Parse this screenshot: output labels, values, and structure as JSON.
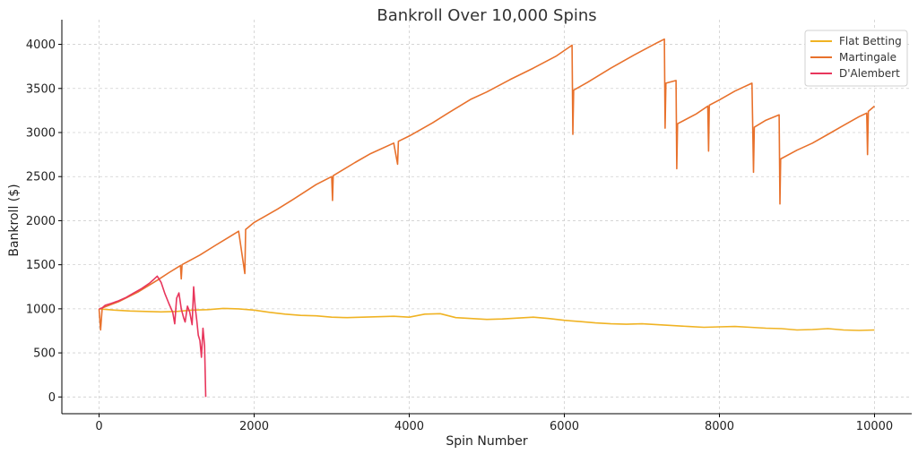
{
  "chart_data": {
    "type": "line",
    "title": "Bankroll Over 10,000 Spins",
    "xlabel": "Spin Number",
    "ylabel": "Bankroll ($)",
    "xlim": [
      -480,
      10480
    ],
    "ylim": [
      -190,
      4280
    ],
    "xticks": [
      0,
      2000,
      4000,
      6000,
      8000,
      10000
    ],
    "yticks": [
      0,
      500,
      1000,
      1500,
      2000,
      2500,
      3000,
      3500,
      4000
    ],
    "grid": true,
    "legend_position": "top-right",
    "series": [
      {
        "name": "Flat Betting",
        "color": "#f0b323",
        "points": [
          [
            0,
            1000
          ],
          [
            200,
            985
          ],
          [
            400,
            975
          ],
          [
            600,
            970
          ],
          [
            800,
            965
          ],
          [
            1000,
            970
          ],
          [
            1200,
            985
          ],
          [
            1400,
            990
          ],
          [
            1600,
            1005
          ],
          [
            1800,
            1000
          ],
          [
            2000,
            985
          ],
          [
            2200,
            960
          ],
          [
            2400,
            940
          ],
          [
            2600,
            925
          ],
          [
            2800,
            920
          ],
          [
            3000,
            905
          ],
          [
            3200,
            900
          ],
          [
            3400,
            905
          ],
          [
            3600,
            910
          ],
          [
            3800,
            915
          ],
          [
            4000,
            905
          ],
          [
            4200,
            940
          ],
          [
            4400,
            945
          ],
          [
            4600,
            900
          ],
          [
            4800,
            890
          ],
          [
            5000,
            880
          ],
          [
            5200,
            885
          ],
          [
            5400,
            895
          ],
          [
            5600,
            905
          ],
          [
            5800,
            890
          ],
          [
            6000,
            870
          ],
          [
            6200,
            855
          ],
          [
            6400,
            840
          ],
          [
            6600,
            830
          ],
          [
            6800,
            825
          ],
          [
            7000,
            830
          ],
          [
            7200,
            820
          ],
          [
            7400,
            810
          ],
          [
            7600,
            800
          ],
          [
            7800,
            790
          ],
          [
            8000,
            795
          ],
          [
            8200,
            800
          ],
          [
            8400,
            790
          ],
          [
            8600,
            780
          ],
          [
            8800,
            775
          ],
          [
            9000,
            760
          ],
          [
            9200,
            765
          ],
          [
            9400,
            775
          ],
          [
            9600,
            760
          ],
          [
            9800,
            755
          ],
          [
            10000,
            760
          ]
        ]
      },
      {
        "name": "Martingale",
        "color": "#e8712c",
        "points": [
          [
            0,
            1000
          ],
          [
            20,
            760
          ],
          [
            40,
            1010
          ],
          [
            250,
            1080
          ],
          [
            500,
            1190
          ],
          [
            760,
            1330
          ],
          [
            900,
            1410
          ],
          [
            1050,
            1490
          ],
          [
            1060,
            1340
          ],
          [
            1070,
            1500
          ],
          [
            1300,
            1610
          ],
          [
            1500,
            1720
          ],
          [
            1800,
            1880
          ],
          [
            1880,
            1400
          ],
          [
            1890,
            1900
          ],
          [
            2000,
            1980
          ],
          [
            2300,
            2130
          ],
          [
            2500,
            2240
          ],
          [
            2800,
            2410
          ],
          [
            3000,
            2500
          ],
          [
            3010,
            2230
          ],
          [
            3020,
            2510
          ],
          [
            3300,
            2660
          ],
          [
            3500,
            2760
          ],
          [
            3800,
            2880
          ],
          [
            3850,
            2640
          ],
          [
            3860,
            2900
          ],
          [
            4000,
            2960
          ],
          [
            4300,
            3110
          ],
          [
            4500,
            3220
          ],
          [
            4800,
            3380
          ],
          [
            5000,
            3460
          ],
          [
            5300,
            3600
          ],
          [
            5600,
            3730
          ],
          [
            5900,
            3870
          ],
          [
            6100,
            3990
          ],
          [
            6110,
            2980
          ],
          [
            6120,
            3480
          ],
          [
            6300,
            3570
          ],
          [
            6600,
            3730
          ],
          [
            6900,
            3880
          ],
          [
            7200,
            4020
          ],
          [
            7290,
            4060
          ],
          [
            7300,
            3050
          ],
          [
            7310,
            3560
          ],
          [
            7440,
            3590
          ],
          [
            7450,
            2590
          ],
          [
            7460,
            3100
          ],
          [
            7700,
            3210
          ],
          [
            7850,
            3300
          ],
          [
            7860,
            2790
          ],
          [
            7870,
            3310
          ],
          [
            8000,
            3370
          ],
          [
            8200,
            3470
          ],
          [
            8420,
            3560
          ],
          [
            8440,
            2550
          ],
          [
            8450,
            3060
          ],
          [
            8600,
            3140
          ],
          [
            8770,
            3200
          ],
          [
            8780,
            2190
          ],
          [
            8790,
            2700
          ],
          [
            9000,
            2800
          ],
          [
            9200,
            2880
          ],
          [
            9400,
            2980
          ],
          [
            9600,
            3080
          ],
          [
            9800,
            3180
          ],
          [
            9900,
            3220
          ],
          [
            9910,
            2750
          ],
          [
            9920,
            3240
          ],
          [
            10000,
            3300
          ]
        ]
      },
      {
        "name": "D'Alembert",
        "color": "#e8365c",
        "points": [
          [
            0,
            1000
          ],
          [
            40,
            1010
          ],
          [
            80,
            1040
          ],
          [
            150,
            1060
          ],
          [
            250,
            1090
          ],
          [
            350,
            1130
          ],
          [
            450,
            1180
          ],
          [
            550,
            1230
          ],
          [
            650,
            1290
          ],
          [
            700,
            1330
          ],
          [
            750,
            1370
          ],
          [
            800,
            1300
          ],
          [
            850,
            1170
          ],
          [
            900,
            1060
          ],
          [
            950,
            960
          ],
          [
            975,
            830
          ],
          [
            1000,
            1120
          ],
          [
            1030,
            1180
          ],
          [
            1060,
            1000
          ],
          [
            1090,
            900
          ],
          [
            1110,
            850
          ],
          [
            1140,
            1030
          ],
          [
            1170,
            960
          ],
          [
            1200,
            820
          ],
          [
            1220,
            1250
          ],
          [
            1240,
            1010
          ],
          [
            1260,
            870
          ],
          [
            1280,
            700
          ],
          [
            1300,
            640
          ],
          [
            1320,
            450
          ],
          [
            1340,
            780
          ],
          [
            1360,
            580
          ],
          [
            1375,
            0
          ]
        ]
      }
    ]
  }
}
